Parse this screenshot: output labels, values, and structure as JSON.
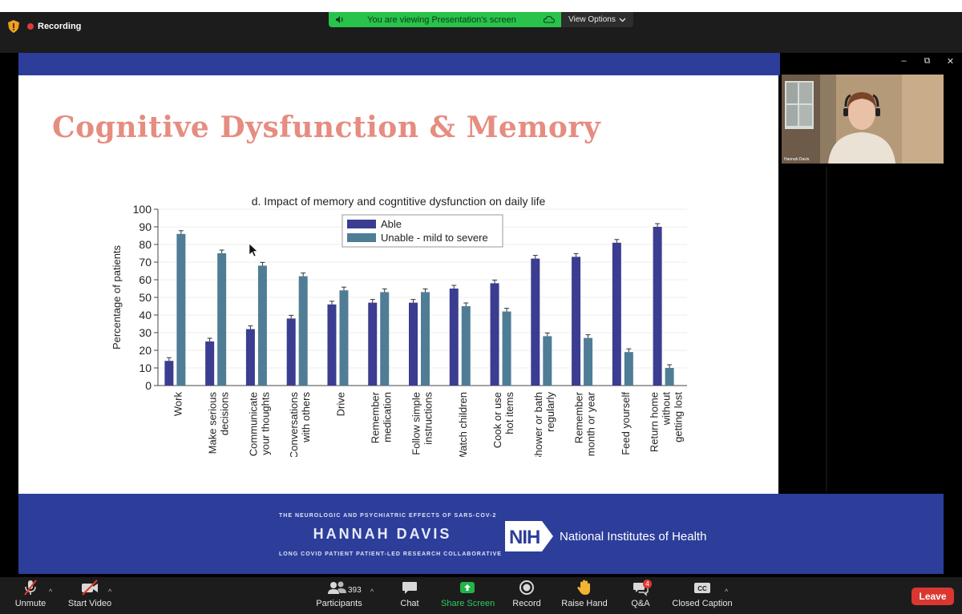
{
  "recording": {
    "label": "Recording"
  },
  "share_banner": {
    "text": "You are viewing Presentation's screen",
    "view_options": "View Options"
  },
  "video_tile": {
    "name": "Hannah Davis"
  },
  "slide": {
    "title": "Cognitive Dysfunction & Memory",
    "footer": {
      "subtitle": "THE NEUROLOGIC AND PSYCHIATRIC EFFECTS OF SARS-COV-2",
      "presenter": "HANNAH DAVIS",
      "tagline": "LONG COVID PATIENT   PATIENT-LED RESEARCH COLLABORATIVE",
      "nih_logo": "NIH",
      "nih_name": "National Institutes of Health"
    }
  },
  "chart_data": {
    "type": "bar",
    "title": "d. Impact of memory and cogntitive dysfunction on daily life",
    "ylabel": "Percentage of patients",
    "xlabel": "",
    "ylim": [
      0,
      100
    ],
    "yticks": [
      0,
      10,
      20,
      30,
      40,
      50,
      60,
      70,
      80,
      90,
      100
    ],
    "grid": true,
    "legend_position": "top-center",
    "categories": [
      [
        "Work"
      ],
      [
        "Make serious",
        "decisions"
      ],
      [
        "Communicate",
        "your thoughts"
      ],
      [
        "Conversations",
        "with others"
      ],
      [
        "Drive"
      ],
      [
        "Remember",
        "medication"
      ],
      [
        "Follow simple",
        "instructions"
      ],
      [
        "Watch children"
      ],
      [
        "Cook or use",
        "hot items"
      ],
      [
        "Shower or bath",
        "regularly"
      ],
      [
        "Remember",
        "month or year"
      ],
      [
        "Feed yourself"
      ],
      [
        "Return home",
        "without",
        "getting lost"
      ]
    ],
    "series": [
      {
        "name": "Able",
        "color": "#3b3d91",
        "values": [
          14,
          25,
          32,
          38,
          46,
          47,
          47,
          55,
          58,
          72,
          73,
          81,
          90
        ]
      },
      {
        "name": "Unable - mild to severe",
        "color": "#4f7d95",
        "values": [
          86,
          75,
          68,
          62,
          54,
          53,
          53,
          45,
          42,
          28,
          27,
          19,
          10
        ]
      }
    ]
  },
  "toolbar": {
    "unmute": "Unmute",
    "start_video": "Start Video",
    "participants": "Participants",
    "participants_count": "393",
    "chat": "Chat",
    "share_screen": "Share Screen",
    "record": "Record",
    "raise_hand": "Raise Hand",
    "qa": "Q&A",
    "qa_badge": "4",
    "closed_caption": "Closed Caption",
    "cc_icon": "CC",
    "leave": "Leave"
  },
  "colors": {
    "slide_blue": "#2c3e9a",
    "title": "#e58d80",
    "share_green": "#29c24a",
    "leave_red": "#d9372f"
  }
}
